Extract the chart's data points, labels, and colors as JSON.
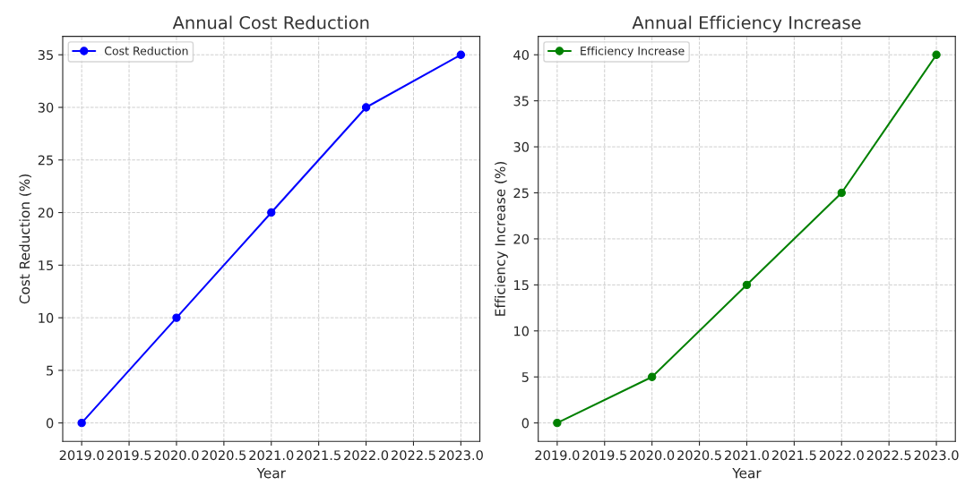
{
  "chart_data": [
    {
      "type": "line",
      "title": "Annual Cost Reduction",
      "xlabel": "Year",
      "ylabel": "Cost Reduction (%)",
      "x": [
        2019,
        2020,
        2021,
        2022,
        2023
      ],
      "series": [
        {
          "name": "Cost Reduction",
          "color": "#0000ff",
          "values": [
            0,
            10,
            20,
            30,
            35
          ]
        }
      ],
      "xlim": [
        2018.8,
        2023.2
      ],
      "ylim": [
        -1.75,
        36.75
      ],
      "xticks": [
        {
          "value": 2019,
          "label": "2019.0"
        },
        {
          "value": 2019.5,
          "label": "2019.5"
        },
        {
          "value": 2020,
          "label": "2020.0"
        },
        {
          "value": 2020.5,
          "label": "2020.5"
        },
        {
          "value": 2021,
          "label": "2021.0"
        },
        {
          "value": 2021.5,
          "label": "2021.5"
        },
        {
          "value": 2022,
          "label": "2022.0"
        },
        {
          "value": 2022.5,
          "label": "2022.5"
        },
        {
          "value": 2023,
          "label": "2023.0"
        }
      ],
      "yticks": [
        0,
        5,
        10,
        15,
        20,
        25,
        30,
        35
      ],
      "grid": true,
      "legend": "top left",
      "marker": "circle",
      "line_style": "solid"
    },
    {
      "type": "line",
      "title": "Annual Efficiency Increase",
      "xlabel": "Year",
      "ylabel": "Efficiency Increase (%)",
      "x": [
        2019,
        2020,
        2021,
        2022,
        2023
      ],
      "series": [
        {
          "name": "Efficiency Increase",
          "color": "#008000",
          "values": [
            0,
            5,
            15,
            25,
            40
          ]
        }
      ],
      "xlim": [
        2018.8,
        2023.2
      ],
      "ylim": [
        -2,
        42
      ],
      "xticks": [
        {
          "value": 2019,
          "label": "2019.0"
        },
        {
          "value": 2019.5,
          "label": "2019.5"
        },
        {
          "value": 2020,
          "label": "2020.0"
        },
        {
          "value": 2020.5,
          "label": "2020.5"
        },
        {
          "value": 2021,
          "label": "2021.0"
        },
        {
          "value": 2021.5,
          "label": "2021.5"
        },
        {
          "value": 2022,
          "label": "2022.0"
        },
        {
          "value": 2022.5,
          "label": "2022.5"
        },
        {
          "value": 2023,
          "label": "2023.0"
        }
      ],
      "yticks": [
        0,
        5,
        10,
        15,
        20,
        25,
        30,
        35,
        40
      ],
      "grid": true,
      "legend": "top left",
      "marker": "circle",
      "line_style": "solid"
    }
  ]
}
